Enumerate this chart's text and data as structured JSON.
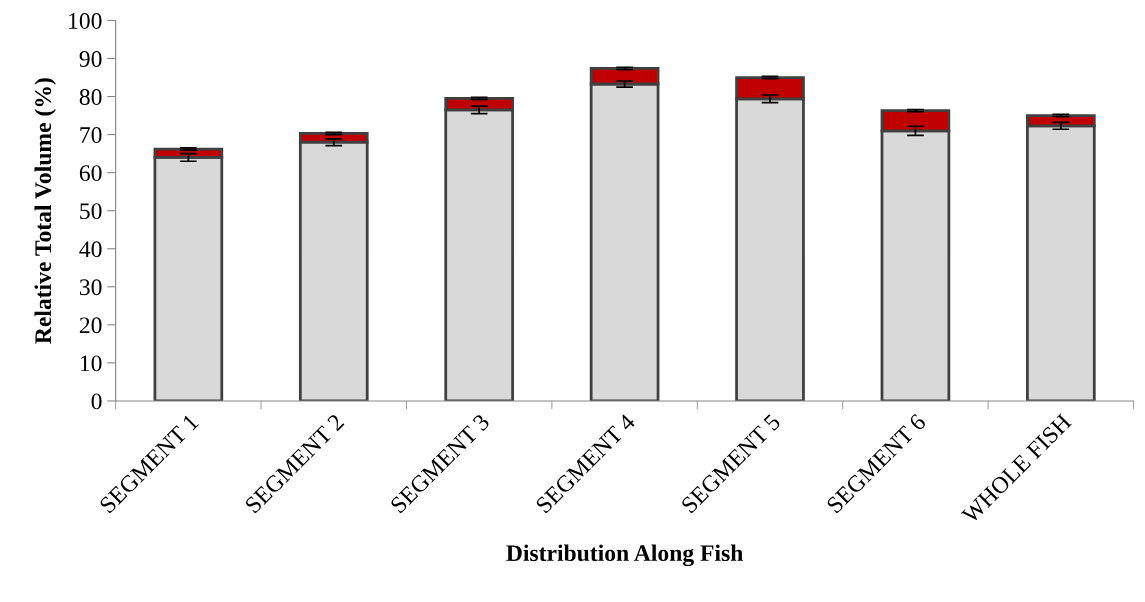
{
  "chart_data": {
    "type": "bar",
    "stacked": true,
    "xlabel": "Distribution Along Fish",
    "ylabel": "Relative Total Volume (%)",
    "categories": [
      "SEGMENT 1",
      "SEGMENT 2",
      "SEGMENT 3",
      "SEGMENT 4",
      "SEGMENT 5",
      "SEGMENT 6",
      "WHOLE FISH"
    ],
    "series": [
      {
        "color": "#d9d9d9",
        "values": [
          64.0,
          68.0,
          76.5,
          83.3,
          79.4,
          71.0,
          72.3
        ],
        "errors": [
          1.0,
          0.9,
          1.0,
          0.8,
          1.0,
          1.2,
          0.9
        ]
      },
      {
        "color": "#c00000",
        "values": [
          2.2,
          2.3,
          3.0,
          4.1,
          5.6,
          5.3,
          2.7
        ],
        "errors": [
          0.3,
          0.3,
          0.3,
          0.3,
          0.3,
          0.3,
          0.3
        ]
      }
    ],
    "ylim": [
      0,
      100
    ],
    "yticks": [
      0,
      10,
      20,
      30,
      40,
      50,
      60,
      70,
      80,
      90,
      100
    ],
    "grid": false,
    "legend": false
  }
}
